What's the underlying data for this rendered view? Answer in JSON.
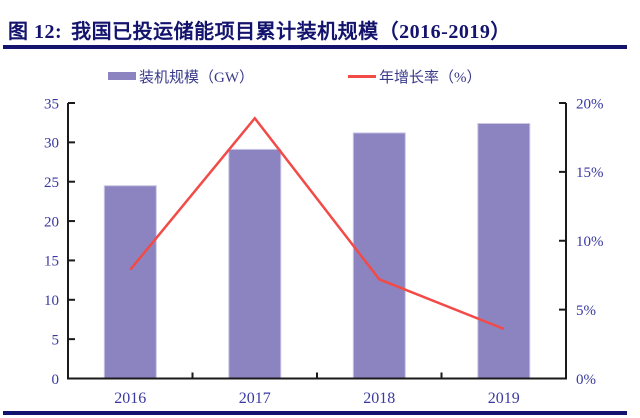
{
  "figure": {
    "label": "图 12:",
    "title": "我国已投运储能项目累计装机规模（2016-2019）"
  },
  "colors": {
    "navy": "#14146E",
    "axis_text": "#3939A1",
    "legend_text": "#3A3A8C",
    "bar": "#8B84C1",
    "bar_edge": "#CBC7E5",
    "line": "#F24B47",
    "axis_line": "#1A1A1A",
    "background": "#FFFFFF"
  },
  "chart_data": {
    "type": "bar+line",
    "title": "我国已投运储能项目累计装机规模（2016-2019）",
    "categories": [
      "2016",
      "2017",
      "2018",
      "2019"
    ],
    "series": [
      {
        "name": "装机规模（GW）",
        "type": "bar",
        "axis": "left",
        "color": "#8B84C1",
        "values": [
          24.5,
          29.1,
          31.2,
          32.4
        ]
      },
      {
        "name": "年增长率（%）",
        "type": "line",
        "axis": "right",
        "color": "#F24B47",
        "values": [
          7.9,
          18.9,
          7.2,
          3.6
        ]
      }
    ],
    "left_axis": {
      "min": 0,
      "max": 35,
      "step": 5,
      "tick_labels": [
        "0",
        "5",
        "10",
        "15",
        "20",
        "25",
        "30",
        "35"
      ]
    },
    "right_axis": {
      "min": 0,
      "max": 20,
      "step": 5,
      "tick_labels": [
        "0%",
        "5%",
        "10%",
        "15%",
        "20%"
      ]
    },
    "grid": false,
    "legend_position": "top"
  }
}
